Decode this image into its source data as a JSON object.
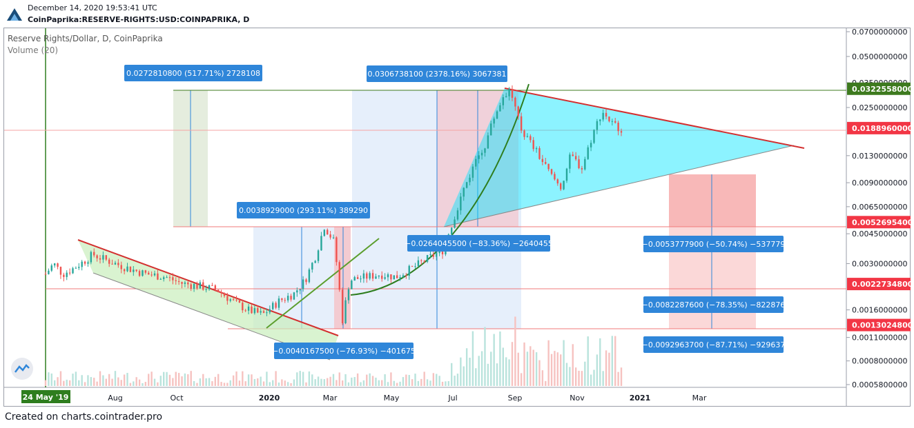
{
  "header": {
    "date": "December 14, 2020 19:53:41 UTC",
    "symbol": "CoinPaprika:RESERVE-RIGHTS:USD:COINPAPRIKA, D"
  },
  "legend": {
    "title": "Reserve Rights/Dollar, D, CoinPaprika",
    "volume": "Volume (20)"
  },
  "footer": "Created on charts.cointrader.pro",
  "colors": {
    "up": "#26a69a",
    "down": "#ef5350",
    "green_line": "#4d7a2a",
    "red_line": "#d32f2f",
    "triangle_fill": "#00e5ff",
    "label_bg": "#2f86d9"
  },
  "chart_data": {
    "type": "candlestick",
    "title": "Reserve Rights/Dollar, D, CoinPaprika",
    "y_scale": "log",
    "y_ticks": [
      "0.0700000000",
      "0.0500000000",
      "0.0350000000",
      "0.0250000000",
      "0.0130000000",
      "0.0090000000",
      "0.0065000000",
      "0.0045000000",
      "0.0030000000",
      "0.0016000000",
      "0.0011000000",
      "0.0008000000",
      "0.0005800000"
    ],
    "x_ticks": [
      "Aug",
      "Oct",
      "2020",
      "Mar",
      "May",
      "Jul",
      "Sep",
      "Nov",
      "2021",
      "Mar"
    ],
    "x_start_label": "24 May '19",
    "price_levels": [
      {
        "value": "0.0322558000",
        "color": "#3d7a1e"
      },
      {
        "value": "0.0188960000",
        "color": "#f23645"
      },
      {
        "value": "0.0052695400",
        "color": "#f23645"
      },
      {
        "value": "0.0022734800",
        "color": "#f23645"
      },
      {
        "value": "0.0013024800",
        "color": "#f23645"
      }
    ],
    "measurements": [
      "0.0272810800 (517.71%) 2728108",
      "0.0306738100 (2378.16%) 3067381",
      "0.0038929000 (293.11%) 389290",
      "−0.0264045500 (−83.36%) −2640455",
      "−0.0040167500 (−76.93%) −401675",
      "−0.0053777900 (−50.74%) −537779",
      "−0.0082287600 (−78.35%) −822876",
      "−0.0092963700 (−87.71%) −929637"
    ],
    "close_series": [
      [
        "2019-05-24",
        0.0026
      ],
      [
        "2019-06-01",
        0.003
      ],
      [
        "2019-06-10",
        0.0026
      ],
      [
        "2019-06-20",
        0.0028
      ],
      [
        "2019-07-01",
        0.0031
      ],
      [
        "2019-07-10",
        0.0034
      ],
      [
        "2019-07-20",
        0.0032
      ],
      [
        "2019-08-01",
        0.003
      ],
      [
        "2019-08-15",
        0.0028
      ],
      [
        "2019-09-01",
        0.0026
      ],
      [
        "2019-09-20",
        0.0025
      ],
      [
        "2019-10-05",
        0.0023
      ],
      [
        "2019-10-25",
        0.0022
      ],
      [
        "2019-11-10",
        0.0021
      ],
      [
        "2019-11-25",
        0.0018
      ],
      [
        "2019-12-10",
        0.0016
      ],
      [
        "2019-12-25",
        0.0015
      ],
      [
        "2020-01-10",
        0.0018
      ],
      [
        "2020-01-25",
        0.002
      ],
      [
        "2020-02-05",
        0.0024
      ],
      [
        "2020-02-15",
        0.0033
      ],
      [
        "2020-02-24",
        0.005
      ],
      [
        "2020-03-05",
        0.004
      ],
      [
        "2020-03-13",
        0.0014
      ],
      [
        "2020-03-20",
        0.0024
      ],
      [
        "2020-04-05",
        0.0025
      ],
      [
        "2020-04-20",
        0.0026
      ],
      [
        "2020-05-05",
        0.0025
      ],
      [
        "2020-05-20",
        0.0028
      ],
      [
        "2020-06-05",
        0.0032
      ],
      [
        "2020-06-20",
        0.0036
      ],
      [
        "2020-07-01",
        0.0055
      ],
      [
        "2020-07-10",
        0.008
      ],
      [
        "2020-07-20",
        0.011
      ],
      [
        "2020-08-01",
        0.015
      ],
      [
        "2020-08-10",
        0.022
      ],
      [
        "2020-08-20",
        0.03
      ],
      [
        "2020-08-26",
        0.032
      ],
      [
        "2020-09-05",
        0.019
      ],
      [
        "2020-09-20",
        0.014
      ],
      [
        "2020-10-05",
        0.01
      ],
      [
        "2020-10-15",
        0.0085
      ],
      [
        "2020-10-25",
        0.013
      ],
      [
        "2020-11-05",
        0.011
      ],
      [
        "2020-11-15",
        0.017
      ],
      [
        "2020-11-25",
        0.024
      ],
      [
        "2020-12-05",
        0.02
      ],
      [
        "2020-12-14",
        0.0189
      ]
    ]
  }
}
